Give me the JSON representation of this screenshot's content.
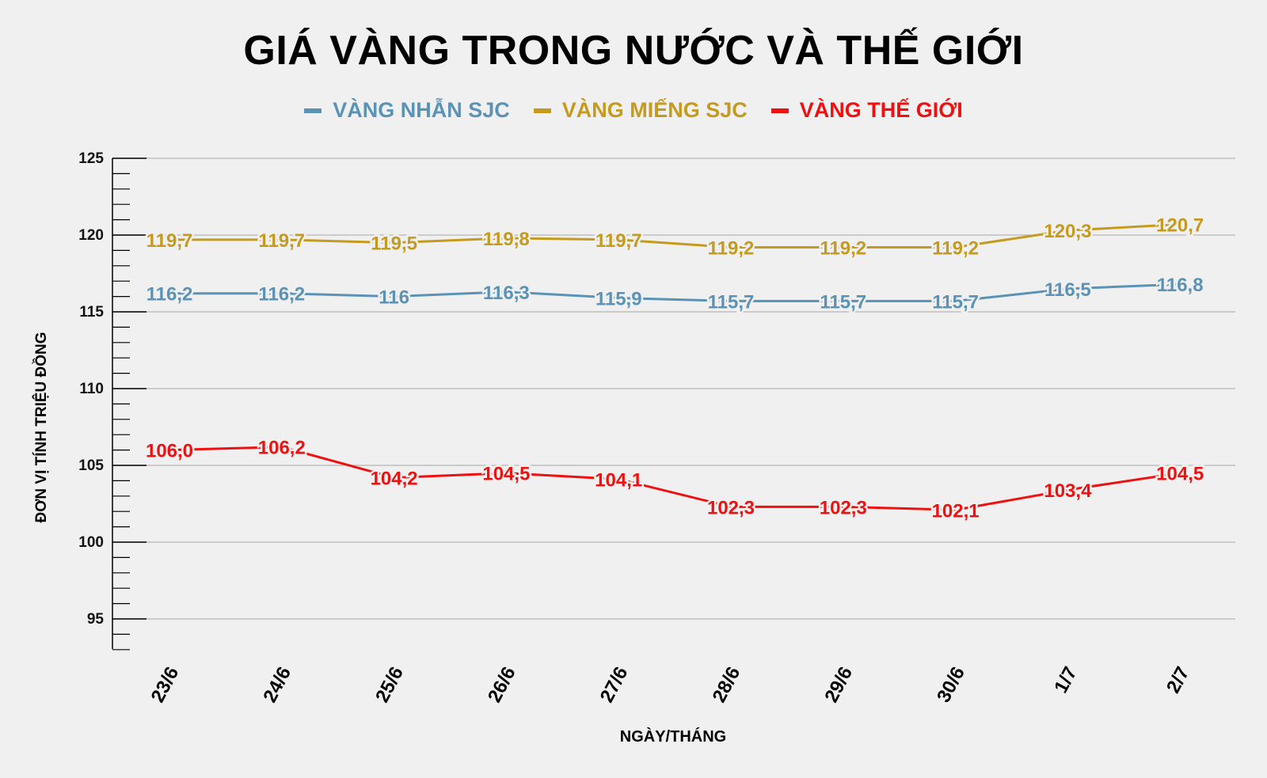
{
  "chart_data": {
    "type": "line",
    "title": "GIÁ VÀNG TRONG NƯỚC VÀ THẾ GIỚI",
    "xlabel": "NGÀY/THÁNG",
    "ylabel": "ĐƠN VỊ TÍNH TRIỆU ĐỒNG",
    "categories": [
      "23/6",
      "24/6",
      "25/6",
      "26/6",
      "27/6",
      "28/6",
      "29/6",
      "30/6",
      "1/7",
      "2/7"
    ],
    "ylim": [
      93,
      125
    ],
    "yticks": [
      95,
      100,
      105,
      110,
      115,
      120,
      125
    ],
    "grid": true,
    "legend": "top-center",
    "series": [
      {
        "name": "VÀNG NHẪN SJC",
        "color": "#5b93b6",
        "values": [
          116.2,
          116.2,
          116,
          116.3,
          115.9,
          115.7,
          115.7,
          115.7,
          116.5,
          116.8
        ],
        "labels": [
          "116,2",
          "116,2",
          "116",
          "116,3",
          "115,9",
          "115,7",
          "115,7",
          "115,7",
          "116,5",
          "116,8"
        ]
      },
      {
        "name": "VÀNG MIẾNG SJC",
        "color": "#c49a1f",
        "values": [
          119.7,
          119.7,
          119.5,
          119.8,
          119.7,
          119.2,
          119.2,
          119.2,
          120.3,
          120.7
        ],
        "labels": [
          "119,7",
          "119,7",
          "119,5",
          "119,8",
          "119,7",
          "119,2",
          "119,2",
          "119,2",
          "120,3",
          "120,7"
        ]
      },
      {
        "name": "VÀNG THẾ GIỚI",
        "color": "#ee1111",
        "values": [
          106.0,
          106.2,
          104.2,
          104.5,
          104.1,
          102.3,
          102.3,
          102.1,
          103.4,
          104.5
        ],
        "labels": [
          "106,0",
          "106,2",
          "104,2",
          "104,5",
          "104,1",
          "102,3",
          "102,3",
          "102,1",
          "103,4",
          "104,5"
        ]
      }
    ]
  }
}
